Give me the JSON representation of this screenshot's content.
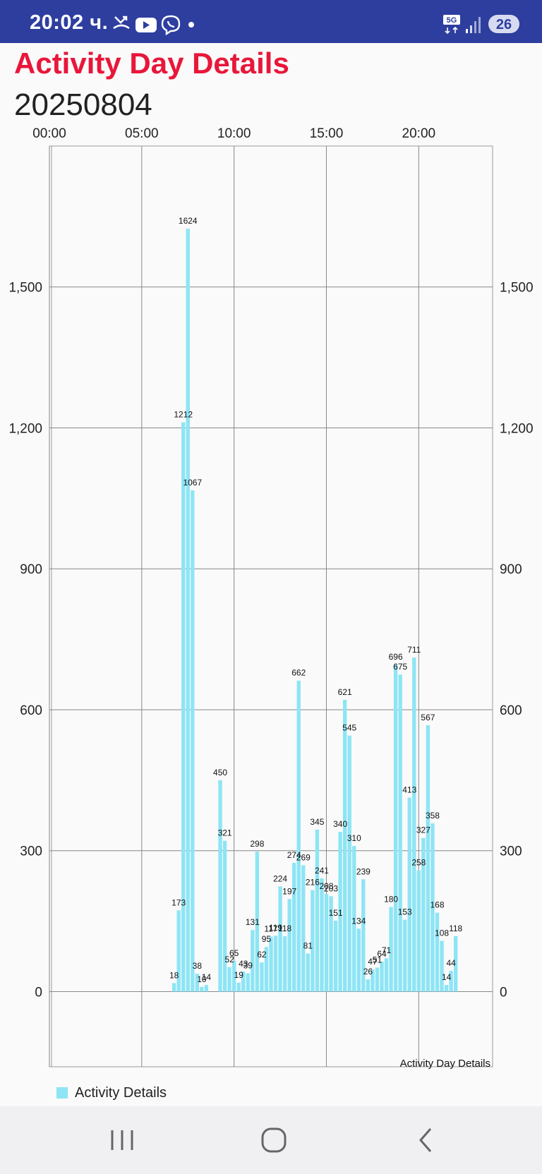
{
  "status_bar": {
    "time": "20:02 ч.",
    "network": "5G",
    "battery": "26",
    "icons": [
      "missed-call-icon",
      "youtube-icon",
      "viber-icon",
      "dot-icon",
      "signal-icon"
    ]
  },
  "header": {
    "title": "Activity Day Details",
    "date": "20250804"
  },
  "legend": {
    "label": "Activity Details",
    "color": "#8de5f5"
  },
  "nav": {
    "icons": [
      "recent-apps-icon",
      "home-icon",
      "back-icon"
    ]
  },
  "chart_data": {
    "type": "bar",
    "description": "Activity Day Details",
    "x_tick_labels": [
      "00:00",
      "05:00",
      "10:00",
      "15:00",
      "20:00"
    ],
    "y_tick_labels": [
      "0",
      "300",
      "600",
      "900",
      "1,200",
      "1,500"
    ],
    "ylim": [
      -160,
      1800
    ],
    "xlim_hours": [
      0,
      24
    ],
    "grid": true,
    "legend_position": "bottom-left",
    "bar_color": "#8de5f5",
    "series": [
      {
        "name": "Activity Details",
        "points": [
          {
            "t": "06:45",
            "v": 18
          },
          {
            "t": "07:00",
            "v": 173
          },
          {
            "t": "07:15",
            "v": 1212
          },
          {
            "t": "07:30",
            "v": 1624
          },
          {
            "t": "07:45",
            "v": 1067
          },
          {
            "t": "08:00",
            "v": 38
          },
          {
            "t": "08:15",
            "v": 10
          },
          {
            "t": "08:30",
            "v": 14
          },
          {
            "t": "09:15",
            "v": 450
          },
          {
            "t": "09:30",
            "v": 321
          },
          {
            "t": "09:45",
            "v": 52
          },
          {
            "t": "10:00",
            "v": 65
          },
          {
            "t": "10:15",
            "v": 19
          },
          {
            "t": "10:30",
            "v": 43
          },
          {
            "t": "10:45",
            "v": 39
          },
          {
            "t": "11:00",
            "v": 131
          },
          {
            "t": "11:15",
            "v": 298
          },
          {
            "t": "11:30",
            "v": 62
          },
          {
            "t": "11:45",
            "v": 95
          },
          {
            "t": "12:00",
            "v": 117
          },
          {
            "t": "12:15",
            "v": 119
          },
          {
            "t": "12:30",
            "v": 224
          },
          {
            "t": "12:45",
            "v": 118
          },
          {
            "t": "13:00",
            "v": 197
          },
          {
            "t": "13:15",
            "v": 274
          },
          {
            "t": "13:30",
            "v": 662
          },
          {
            "t": "13:45",
            "v": 269
          },
          {
            "t": "14:00",
            "v": 81
          },
          {
            "t": "14:15",
            "v": 216
          },
          {
            "t": "14:30",
            "v": 345
          },
          {
            "t": "14:45",
            "v": 241
          },
          {
            "t": "15:00",
            "v": 208
          },
          {
            "t": "15:15",
            "v": 203
          },
          {
            "t": "15:30",
            "v": 151
          },
          {
            "t": "15:45",
            "v": 340
          },
          {
            "t": "16:00",
            "v": 621
          },
          {
            "t": "16:15",
            "v": 545
          },
          {
            "t": "16:30",
            "v": 310
          },
          {
            "t": "16:45",
            "v": 134
          },
          {
            "t": "17:00",
            "v": 239
          },
          {
            "t": "17:15",
            "v": 26
          },
          {
            "t": "17:30",
            "v": 47
          },
          {
            "t": "17:45",
            "v": 51
          },
          {
            "t": "18:00",
            "v": 64
          },
          {
            "t": "18:15",
            "v": 71
          },
          {
            "t": "18:30",
            "v": 180
          },
          {
            "t": "18:45",
            "v": 696
          },
          {
            "t": "19:00",
            "v": 675
          },
          {
            "t": "19:15",
            "v": 153
          },
          {
            "t": "19:30",
            "v": 413
          },
          {
            "t": "19:45",
            "v": 711
          },
          {
            "t": "20:00",
            "v": 258
          },
          {
            "t": "20:15",
            "v": 327
          },
          {
            "t": "20:30",
            "v": 567
          },
          {
            "t": "20:45",
            "v": 358
          },
          {
            "t": "21:00",
            "v": 168
          },
          {
            "t": "21:15",
            "v": 108
          },
          {
            "t": "21:30",
            "v": 14
          },
          {
            "t": "21:45",
            "v": 44
          },
          {
            "t": "22:00",
            "v": 118
          }
        ]
      }
    ]
  }
}
